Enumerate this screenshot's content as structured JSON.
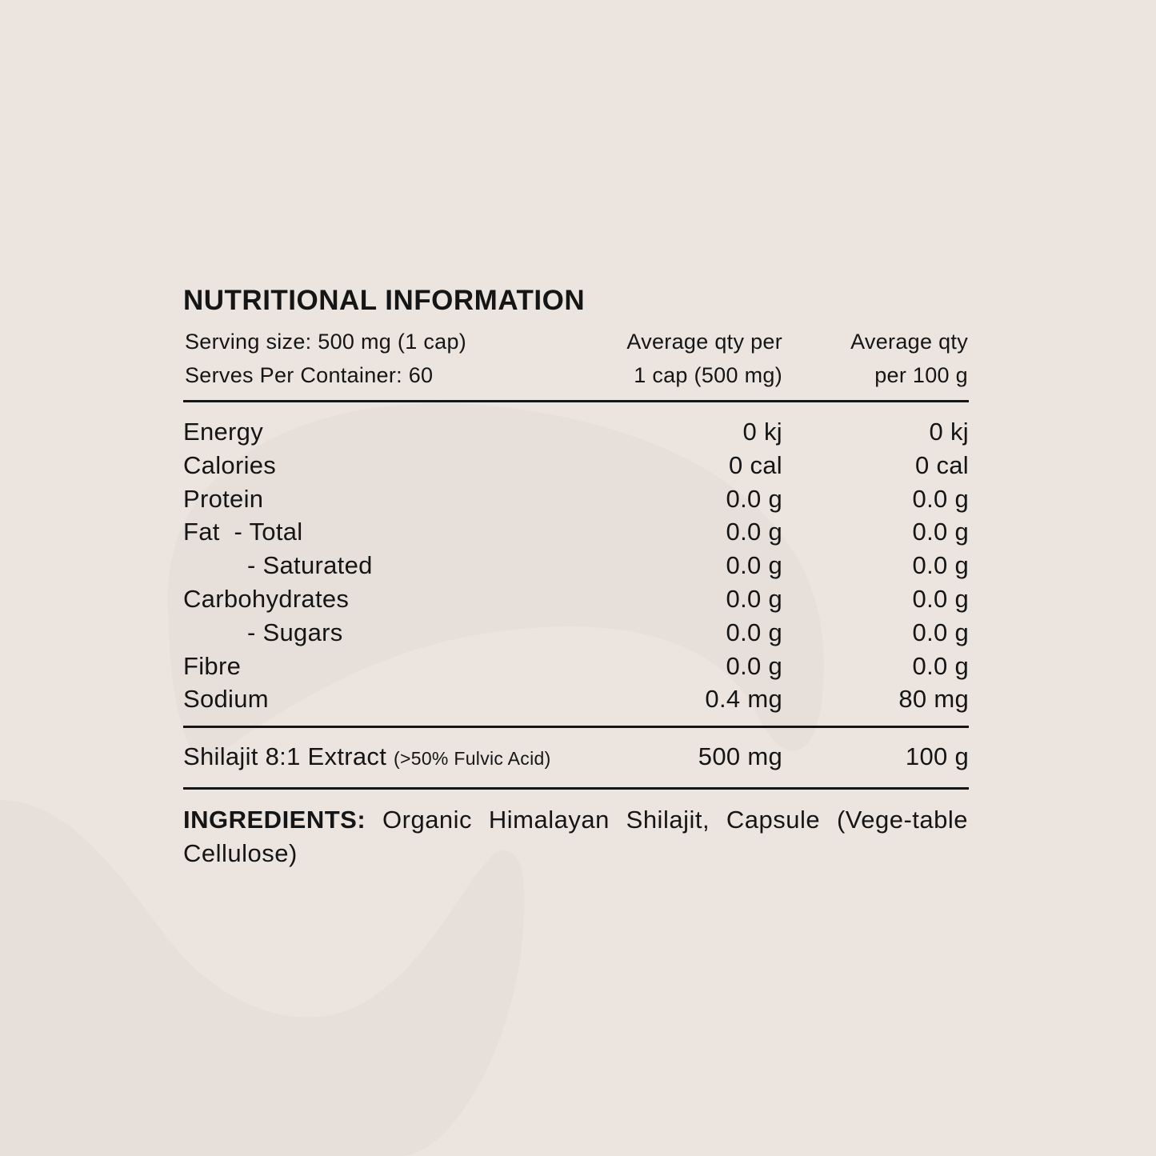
{
  "title": "NUTRITIONAL INFORMATION",
  "header": {
    "serving_size": "Serving size: 500 mg (1 cap)",
    "serves_per_container": "Serves Per Container: 60",
    "col1_line1": "Average qty per",
    "col1_line2": "1 cap (500 mg)",
    "col2_line1": "Average qty",
    "col2_line2": "per 100 g"
  },
  "rows": [
    {
      "label": "Energy",
      "per_serve": "0 kj",
      "per_100g": "0 kj"
    },
    {
      "label": "Calories",
      "per_serve": "0 cal",
      "per_100g": "0 cal"
    },
    {
      "label": "Protein",
      "per_serve": "0.0 g",
      "per_100g": "0.0 g"
    },
    {
      "label": "Fat  - Total",
      "per_serve": "0.0 g",
      "per_100g": "0.0 g"
    },
    {
      "label": "- Saturated",
      "per_serve": "0.0 g",
      "per_100g": "0.0 g"
    },
    {
      "label": "Carbohydrates",
      "per_serve": "0.0 g",
      "per_100g": "0.0 g"
    },
    {
      "label": "- Sugars",
      "per_serve": "0.0 g",
      "per_100g": "0.0 g"
    },
    {
      "label": "Fibre",
      "per_serve": "0.0 g",
      "per_100g": "0.0 g"
    },
    {
      "label": "Sodium",
      "per_serve": "0.4 mg",
      "per_100g": "80 mg"
    }
  ],
  "extract": {
    "label": "Shilajit 8:1 Extract",
    "note": "(>50% Fulvic Acid)",
    "per_serve": "500 mg",
    "per_100g": "100 g"
  },
  "ingredients": {
    "heading": "INGREDIENTS:",
    "text": "Organic Himalayan Shilajit, Capsule (Vege-table Cellulose)"
  },
  "colors": {
    "background": "#ECE5DF",
    "watermark": "#E6DFD9",
    "text": "#151515"
  }
}
